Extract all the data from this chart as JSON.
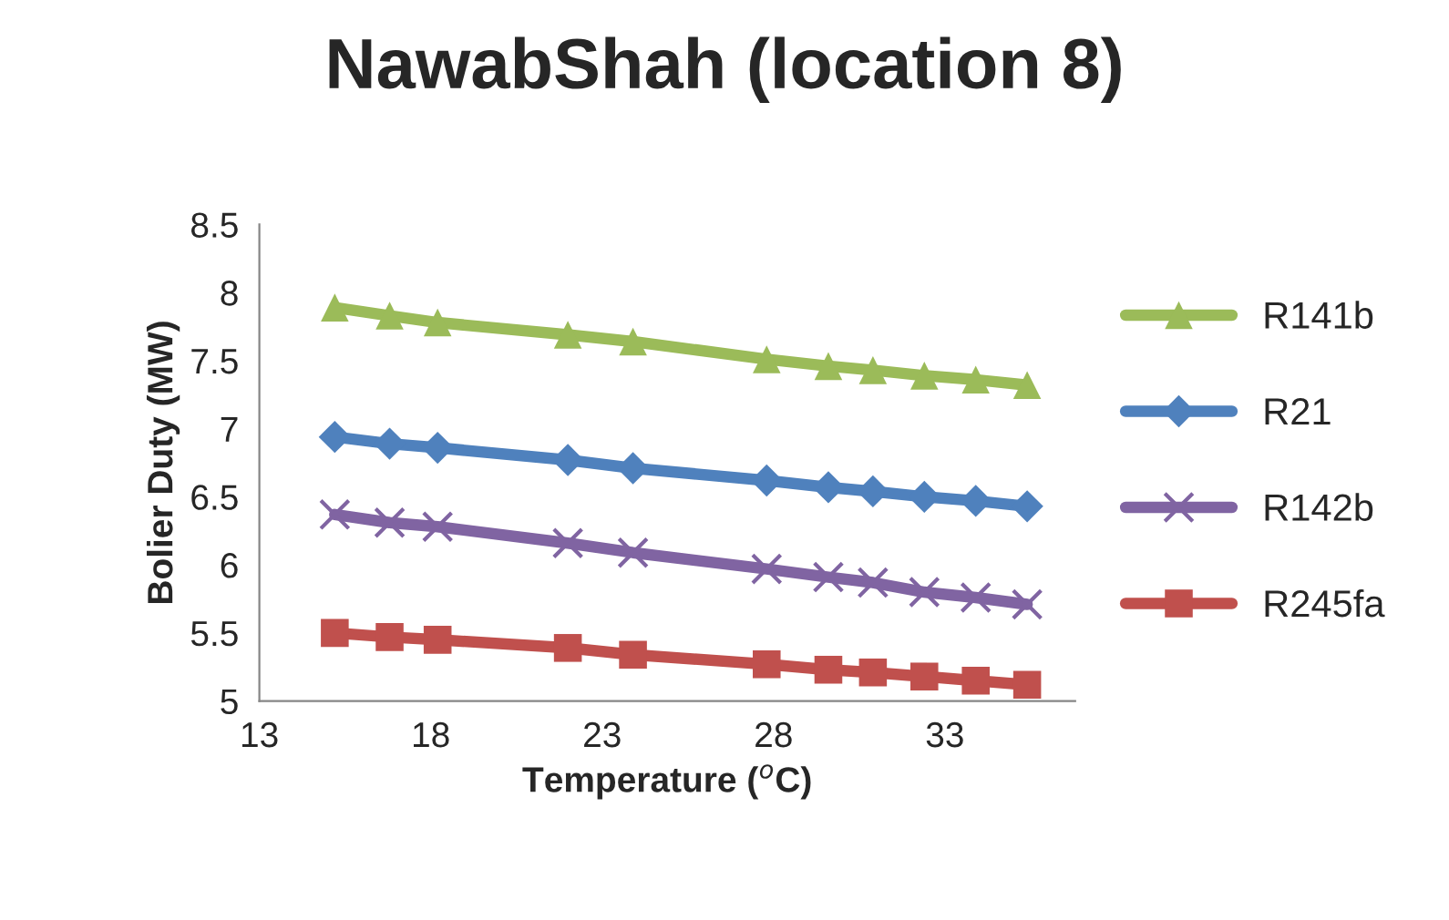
{
  "chart_data": {
    "type": "line",
    "title": "NawabShah (location 8)",
    "xlabel": "Temperature ($^{o}$C)",
    "ylabel": "Bolier Duty (MW)",
    "x": [
      15.2,
      16.8,
      18.2,
      22.0,
      23.9,
      27.8,
      29.6,
      30.9,
      32.4,
      33.9,
      35.4
    ],
    "xlim": [
      13,
      36.8
    ],
    "xticks": [
      13,
      18,
      23,
      28,
      33
    ],
    "ylim": [
      5,
      8.5
    ],
    "yticks": [
      5,
      5.5,
      6,
      6.5,
      7,
      7.5,
      8,
      8.5
    ],
    "grid": false,
    "legend": "right",
    "line_style": "solid",
    "series": [
      {
        "name": "R141b",
        "color": "#9bbb59",
        "marker": "triangle",
        "values": [
          7.89,
          7.83,
          7.78,
          7.69,
          7.64,
          7.51,
          7.46,
          7.43,
          7.39,
          7.36,
          7.32
        ]
      },
      {
        "name": "R21",
        "color": "#4f81bd",
        "marker": "diamond",
        "values": [
          6.94,
          6.89,
          6.86,
          6.77,
          6.71,
          6.62,
          6.57,
          6.54,
          6.5,
          6.47,
          6.43
        ]
      },
      {
        "name": "R142b",
        "color": "#8064a2",
        "marker": "cross",
        "values": [
          6.37,
          6.31,
          6.28,
          6.16,
          6.09,
          5.97,
          5.91,
          5.87,
          5.8,
          5.76,
          5.71
        ]
      },
      {
        "name": "R245fa",
        "color": "#c0504d",
        "marker": "square",
        "values": [
          5.5,
          5.47,
          5.45,
          5.39,
          5.34,
          5.27,
          5.23,
          5.21,
          5.18,
          5.15,
          5.12
        ]
      }
    ]
  }
}
